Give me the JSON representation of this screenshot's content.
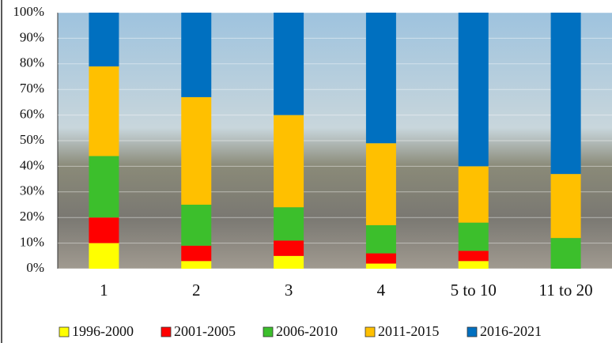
{
  "chart_data": {
    "type": "stacked-bar",
    "categories": [
      "1",
      "2",
      "3",
      "4",
      "5 to 10",
      "11 to 20"
    ],
    "series": [
      {
        "name": "1996-2000",
        "color": "#ffff00",
        "values": [
          10,
          3,
          5,
          2,
          3,
          0
        ]
      },
      {
        "name": "2001-2005",
        "color": "#ff0000",
        "values": [
          10,
          6,
          6,
          4,
          4,
          0
        ]
      },
      {
        "name": "2006-2010",
        "color": "#3cbf2c",
        "values": [
          24,
          16,
          13,
          11,
          11,
          12
        ]
      },
      {
        "name": "2011-2015",
        "color": "#ffc000",
        "values": [
          35,
          42,
          36,
          32,
          22,
          25
        ]
      },
      {
        "name": "2016-2021",
        "color": "#0070c0",
        "values": [
          21,
          33,
          40,
          51,
          60,
          63
        ]
      }
    ],
    "ylim": [
      0,
      100
    ],
    "yticks": [
      {
        "value": 0,
        "label": "0%"
      },
      {
        "value": 10,
        "label": "10%"
      },
      {
        "value": 20,
        "label": "20%"
      },
      {
        "value": 30,
        "label": "30%"
      },
      {
        "value": 40,
        "label": "40%"
      },
      {
        "value": 50,
        "label": "50%"
      },
      {
        "value": 60,
        "label": "60%"
      },
      {
        "value": 70,
        "label": "70%"
      },
      {
        "value": 80,
        "label": "80%"
      },
      {
        "value": 90,
        "label": "90%"
      },
      {
        "value": 100,
        "label": "100%"
      }
    ],
    "grid": true
  }
}
